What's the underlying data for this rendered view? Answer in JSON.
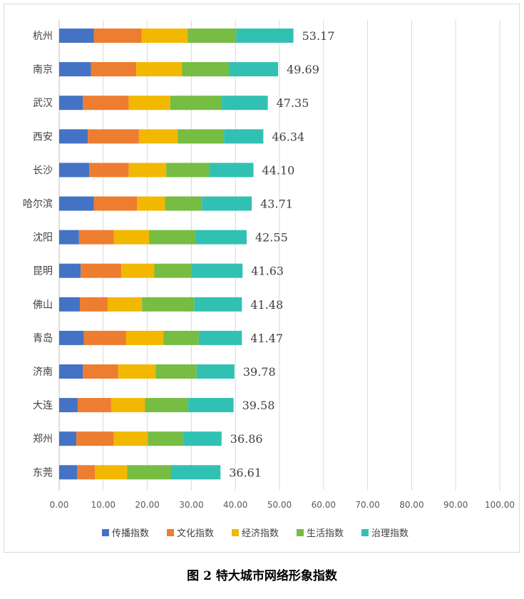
{
  "chart_data": {
    "type": "bar",
    "orientation": "horizontal",
    "stacked": true,
    "title": "图 2  特大城市网络形象指数",
    "categories": [
      "杭州",
      "南京",
      "武汉",
      "西安",
      "长沙",
      "哈尔滨",
      "沈阳",
      "昆明",
      "佛山",
      "青岛",
      "济南",
      "大连",
      "郑州",
      "东莞"
    ],
    "totals": [
      "53.17",
      "49.69",
      "47.35",
      "46.34",
      "44.10",
      "43.71",
      "42.55",
      "41.63",
      "41.48",
      "41.47",
      "39.78",
      "39.58",
      "36.86",
      "36.61"
    ],
    "series": [
      {
        "name": "传播指数",
        "color": "#4472c4",
        "values": [
          7.9,
          7.2,
          5.4,
          6.5,
          6.8,
          7.9,
          4.5,
          4.9,
          4.7,
          5.6,
          5.4,
          4.2,
          3.9,
          4.1
        ]
      },
      {
        "name": "文化指数",
        "color": "#ed7d31",
        "values": [
          10.8,
          10.3,
          10.4,
          11.6,
          9.0,
          9.8,
          7.9,
          9.2,
          6.3,
          9.6,
          8.0,
          7.6,
          8.5,
          4.0
        ]
      },
      {
        "name": "经济指数",
        "color": "#f2b800",
        "values": [
          10.5,
          10.4,
          9.4,
          8.8,
          8.5,
          6.3,
          8.0,
          7.5,
          7.8,
          8.5,
          8.5,
          7.7,
          7.7,
          7.3
        ]
      },
      {
        "name": "生活指数",
        "color": "#77bc43",
        "values": [
          11.0,
          10.6,
          11.7,
          10.5,
          9.7,
          8.4,
          10.5,
          8.5,
          11.9,
          8.0,
          9.3,
          9.8,
          8.0,
          10.0
        ]
      },
      {
        "name": "治理指数",
        "color": "#31c1b3",
        "values": [
          12.97,
          11.19,
          10.45,
          8.94,
          10.1,
          11.31,
          11.65,
          11.53,
          10.78,
          9.77,
          8.58,
          10.28,
          8.76,
          11.21
        ]
      }
    ],
    "xlim": [
      0,
      100
    ],
    "xticks": [
      "0.00",
      "10.00",
      "20.00",
      "30.00",
      "40.00",
      "50.00",
      "60.00",
      "70.00",
      "80.00",
      "90.00",
      "100.00"
    ],
    "grid": true,
    "legend": "bottom"
  }
}
